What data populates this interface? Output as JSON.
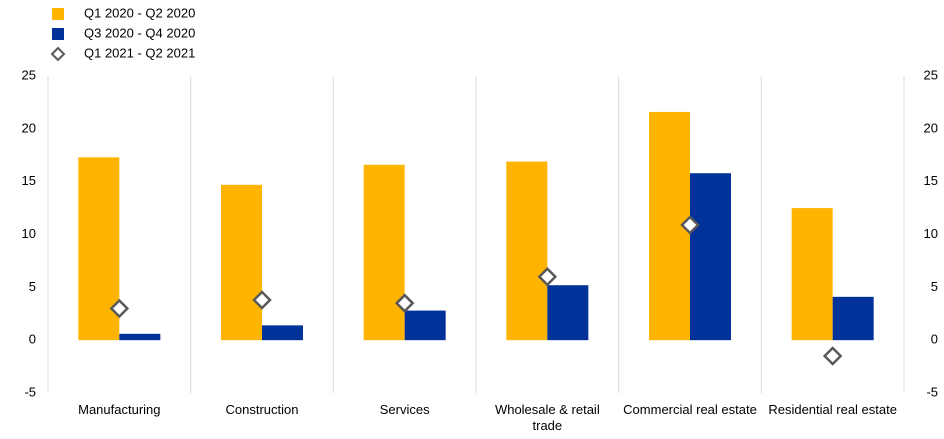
{
  "chart_data": {
    "type": "bar",
    "categories": [
      "Manufacturing",
      "Construction",
      "Services",
      "Wholesale & retail trade",
      "Commercial real estate",
      "Residential real estate"
    ],
    "series": [
      {
        "name": "Q1 2020 - Q2 2020",
        "type": "bar",
        "color": "#ffb400",
        "values": [
          17.3,
          14.7,
          16.6,
          16.9,
          21.6,
          12.5
        ]
      },
      {
        "name": "Q3 2020 - Q4 2020",
        "type": "bar",
        "color": "#003299",
        "values": [
          0.6,
          1.4,
          2.8,
          5.2,
          15.8,
          4.1
        ]
      },
      {
        "name": "Q1 2021 - Q2 2021",
        "type": "scatter",
        "marker": "diamond",
        "color": "#595959",
        "values": [
          3.0,
          3.8,
          3.5,
          6.0,
          10.9,
          -1.5
        ]
      }
    ],
    "ylim": [
      -5,
      25
    ],
    "yticks": [
      -5,
      0,
      5,
      10,
      15,
      20,
      25
    ],
    "y2lim": [
      -5,
      25
    ],
    "y2ticks": [
      -5,
      0,
      5,
      10,
      15,
      20,
      25
    ],
    "grid": false,
    "legend": "top-left"
  }
}
